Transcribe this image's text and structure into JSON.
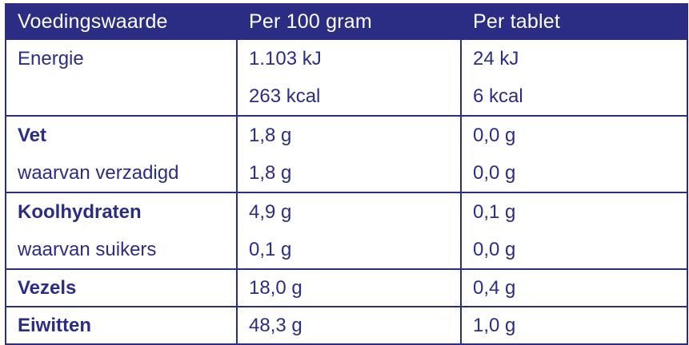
{
  "table": {
    "headers": [
      "Voedingswaarde",
      "Per 100 gram",
      "Per tablet"
    ],
    "rows": [
      {
        "label": [
          "Energie",
          ""
        ],
        "per100": [
          "1.103 kJ",
          "263 kcal"
        ],
        "pertablet": [
          "24 kJ",
          "6 kcal"
        ]
      },
      {
        "label": [
          "Vet",
          "waarvan verzadigd"
        ],
        "per100": [
          "1,8 g",
          "1,8 g"
        ],
        "pertablet": [
          "0,0 g",
          "0,0 g"
        ]
      },
      {
        "label": [
          "Koolhydraten",
          "waarvan suikers"
        ],
        "per100": [
          "4,9 g",
          "0,1 g"
        ],
        "pertablet": [
          "0,1 g",
          "0,0 g"
        ]
      },
      {
        "label": [
          "Vezels"
        ],
        "per100": [
          "18,0 g"
        ],
        "pertablet": [
          "0,4 g"
        ]
      },
      {
        "label": [
          "Eiwitten"
        ],
        "per100": [
          "48,3 g"
        ],
        "pertablet": [
          "1,0 g"
        ]
      }
    ]
  },
  "colors": {
    "accent": "#2b2d84",
    "header_text": "#ffffff"
  }
}
